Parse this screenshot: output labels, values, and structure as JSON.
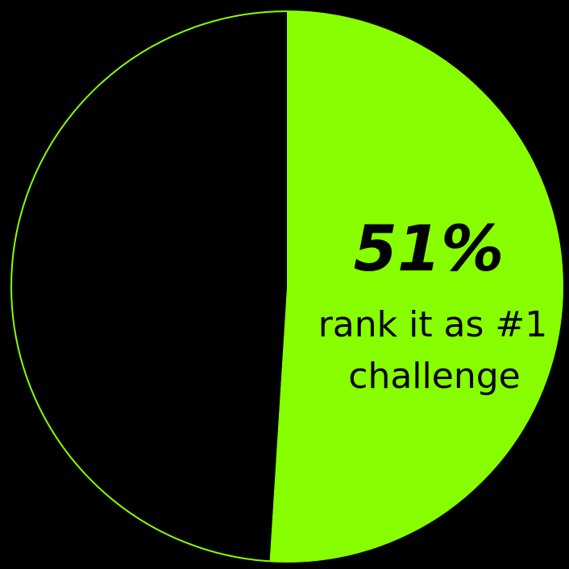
{
  "chart_data": {
    "type": "pie",
    "slices": [
      {
        "value": 51,
        "color": "#88FF00"
      },
      {
        "value": 49,
        "color": "#000000"
      }
    ],
    "outline_color": "#88FF00",
    "text_color": "#000000",
    "annotation": {
      "value_label": "51%",
      "caption_line1": "rank it as #1",
      "caption_line2": "challenge"
    }
  }
}
